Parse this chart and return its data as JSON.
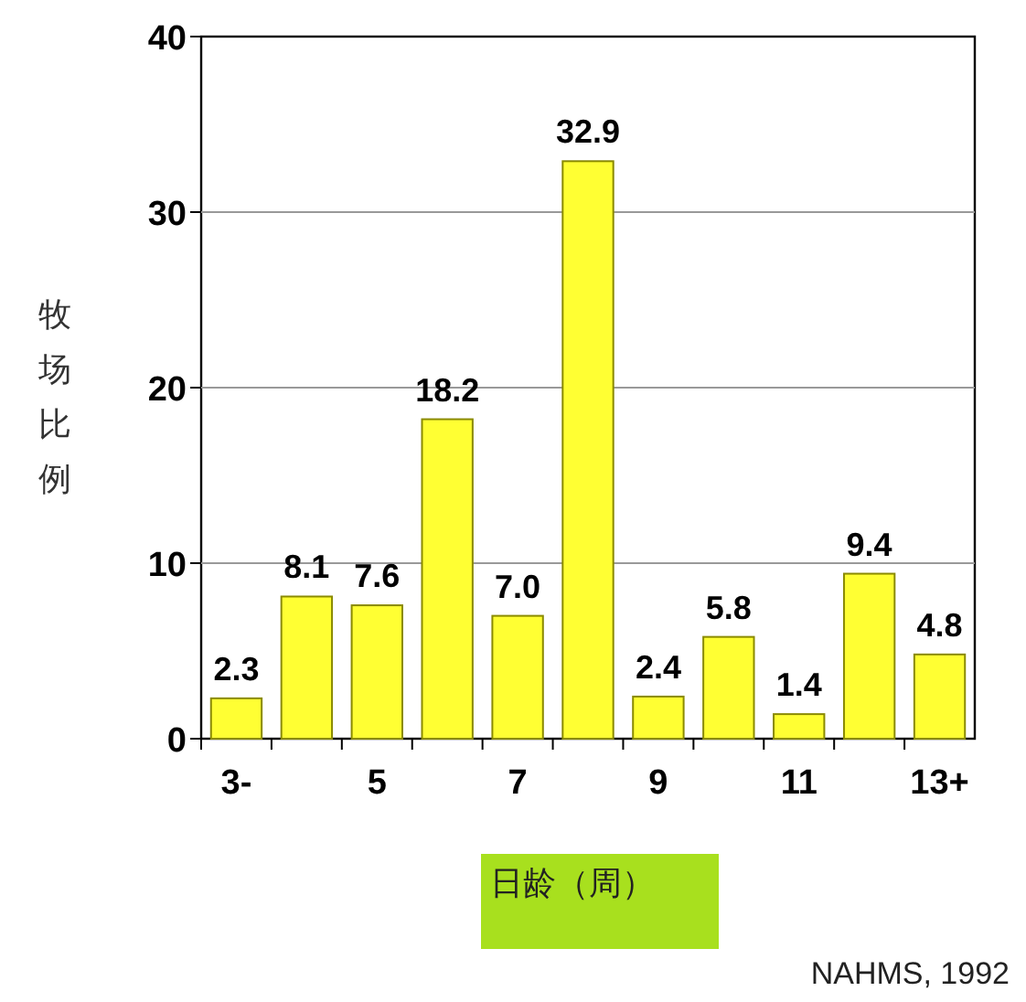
{
  "chart_data": {
    "type": "bar",
    "categories": [
      "3-",
      null,
      "5",
      null,
      "7",
      null,
      "9",
      null,
      "11",
      null,
      "13+"
    ],
    "values": [
      2.3,
      8.1,
      7.6,
      18.2,
      7.0,
      32.9,
      2.4,
      5.8,
      1.4,
      9.4,
      4.8
    ],
    "color": "#ffff33",
    "value_labels": [
      "2.3",
      "8.1",
      "7.6",
      "18.2",
      "7.0",
      "32.9",
      "2.4",
      "5.8",
      "1.4",
      "9.4",
      "4.8"
    ],
    "ylim": [
      0,
      40
    ],
    "yticks": [
      0,
      10,
      20,
      30,
      40
    ],
    "grid": "y",
    "ylabel": "牧场比例",
    "xlabel": "日龄（周）",
    "annotations": [
      "NAHMS, 1992"
    ]
  }
}
